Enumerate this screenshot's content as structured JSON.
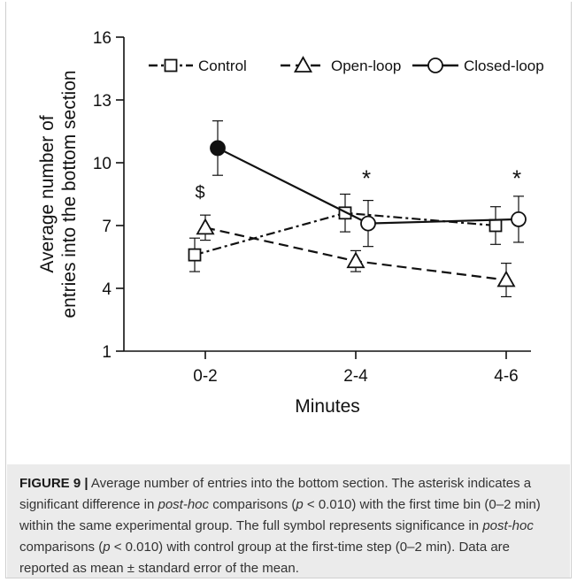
{
  "chart_data": {
    "type": "line",
    "categories": [
      "0-2",
      "2-4",
      "4-6"
    ],
    "xlabel": "Minutes",
    "ylabel_lines": [
      "Average number of",
      "entries into the bottom section"
    ],
    "ylim": [
      1,
      16
    ],
    "yticks": [
      1,
      4,
      7,
      10,
      13,
      16
    ],
    "grid": false,
    "legend_position": "top",
    "series": [
      {
        "name": "Control",
        "marker": "square",
        "line_style": "dash-dot",
        "values": [
          5.6,
          7.6,
          7.0
        ],
        "errors": [
          0.8,
          0.9,
          0.9
        ],
        "filled": [
          false,
          false,
          false
        ]
      },
      {
        "name": "Open-loop",
        "marker": "triangle",
        "line_style": "dashed",
        "values": [
          6.9,
          5.3,
          4.4
        ],
        "errors": [
          0.6,
          0.5,
          0.8
        ],
        "filled": [
          false,
          false,
          false
        ]
      },
      {
        "name": "Closed-loop",
        "marker": "circle",
        "line_style": "solid",
        "values": [
          10.7,
          7.1,
          7.3
        ],
        "errors": [
          1.3,
          1.1,
          1.1
        ],
        "filled": [
          true,
          false,
          false
        ]
      }
    ],
    "annotations": [
      {
        "text": "$",
        "category": "0-2",
        "y": 8.6
      },
      {
        "text": "*",
        "category": "2-4",
        "y": 9.3
      },
      {
        "text": "*",
        "category": "4-6",
        "y": 9.3
      }
    ]
  },
  "caption": {
    "label": "FIGURE 9 |",
    "segments": [
      {
        "text": " Average number of entries into the bottom section. The asterisk indicates a significant difference in ",
        "italic": false
      },
      {
        "text": "post-hoc",
        "italic": true
      },
      {
        "text": " comparisons (",
        "italic": false
      },
      {
        "text": "p",
        "italic": true
      },
      {
        "text": " < 0.010) with the first time bin (0–2 min) within the same experimental group. The full symbol represents significance in ",
        "italic": false
      },
      {
        "text": "post-hoc",
        "italic": true
      },
      {
        "text": " comparisons (",
        "italic": false
      },
      {
        "text": "p",
        "italic": true
      },
      {
        "text": " < 0.010) with control group at the first-time step (0–2 min). Data are reported as mean ± standard error of the mean.",
        "italic": false
      }
    ]
  }
}
